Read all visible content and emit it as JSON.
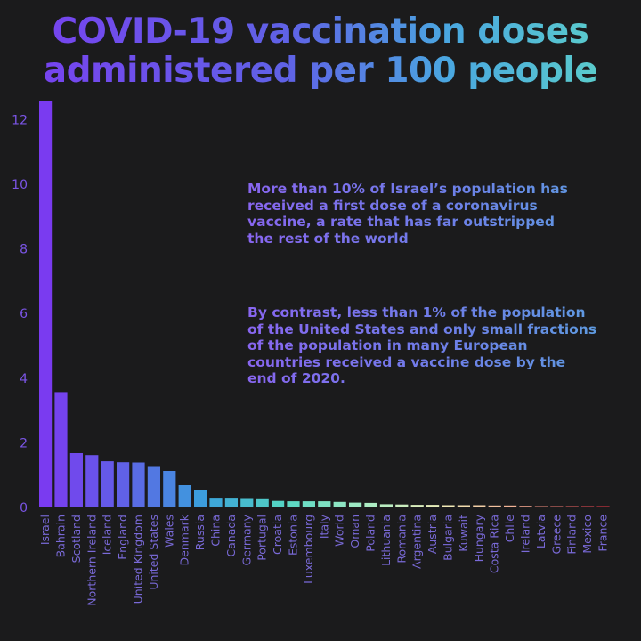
{
  "title_line1": "COVID-19 vaccination doses",
  "title_line2": "administered per 100 people",
  "annotation1": "More than 10% of Israel’s population has\nreceived a first dose of a coronavirus\nvaccine, a rate that has far outstripped\nthe rest of the world",
  "annotation2": "By contrast, less than 1% of the population\nof the United States and only small fractions\n of the population in many European\ncountries received a vaccine dose by the\nend of 2020.",
  "colors": {
    "background": "#1b1b1c",
    "bar_gradient": [
      "#7a3bf0",
      "#5f62e6",
      "#3aa0dc",
      "#55d6c2",
      "#a6ecc4",
      "#f2eeb8",
      "#f4a890",
      "#f23848"
    ]
  },
  "chart_data": {
    "type": "bar",
    "title": "COVID-19 vaccination doses administered per 100 people",
    "xlabel": "",
    "ylabel": "",
    "ylim": [
      0,
      12.7
    ],
    "yticks": [
      0,
      2,
      4,
      6,
      8,
      10,
      12
    ],
    "grid": false,
    "categories": [
      "Israel",
      "Bahrain",
      "Scotland",
      "Northern Ireland",
      "Iceland",
      "England",
      "United Kingdom",
      "United States",
      "Wales",
      "Denmark",
      "Russia",
      "China",
      "Canada",
      "Germany",
      "Portugal",
      "Croatia",
      "Estonia",
      "Luxembourg",
      "Italy",
      "World",
      "Oman",
      "Poland",
      "Lithuania",
      "Romania",
      "Argentina",
      "Austria",
      "Bulgaria",
      "Kuwait",
      "Hungary",
      "Costa Rica",
      "Chile",
      "Ireland",
      "Latvia",
      "Greece",
      "Finland",
      "Mexico",
      "France"
    ],
    "values": [
      12.58,
      3.57,
      1.68,
      1.62,
      1.43,
      1.4,
      1.39,
      1.28,
      1.13,
      0.69,
      0.55,
      0.3,
      0.3,
      0.29,
      0.28,
      0.2,
      0.19,
      0.19,
      0.19,
      0.17,
      0.15,
      0.14,
      0.1,
      0.09,
      0.08,
      0.08,
      0.07,
      0.07,
      0.07,
      0.06,
      0.06,
      0.05,
      0.04,
      0.04,
      0.03,
      0.03,
      0.01
    ]
  }
}
